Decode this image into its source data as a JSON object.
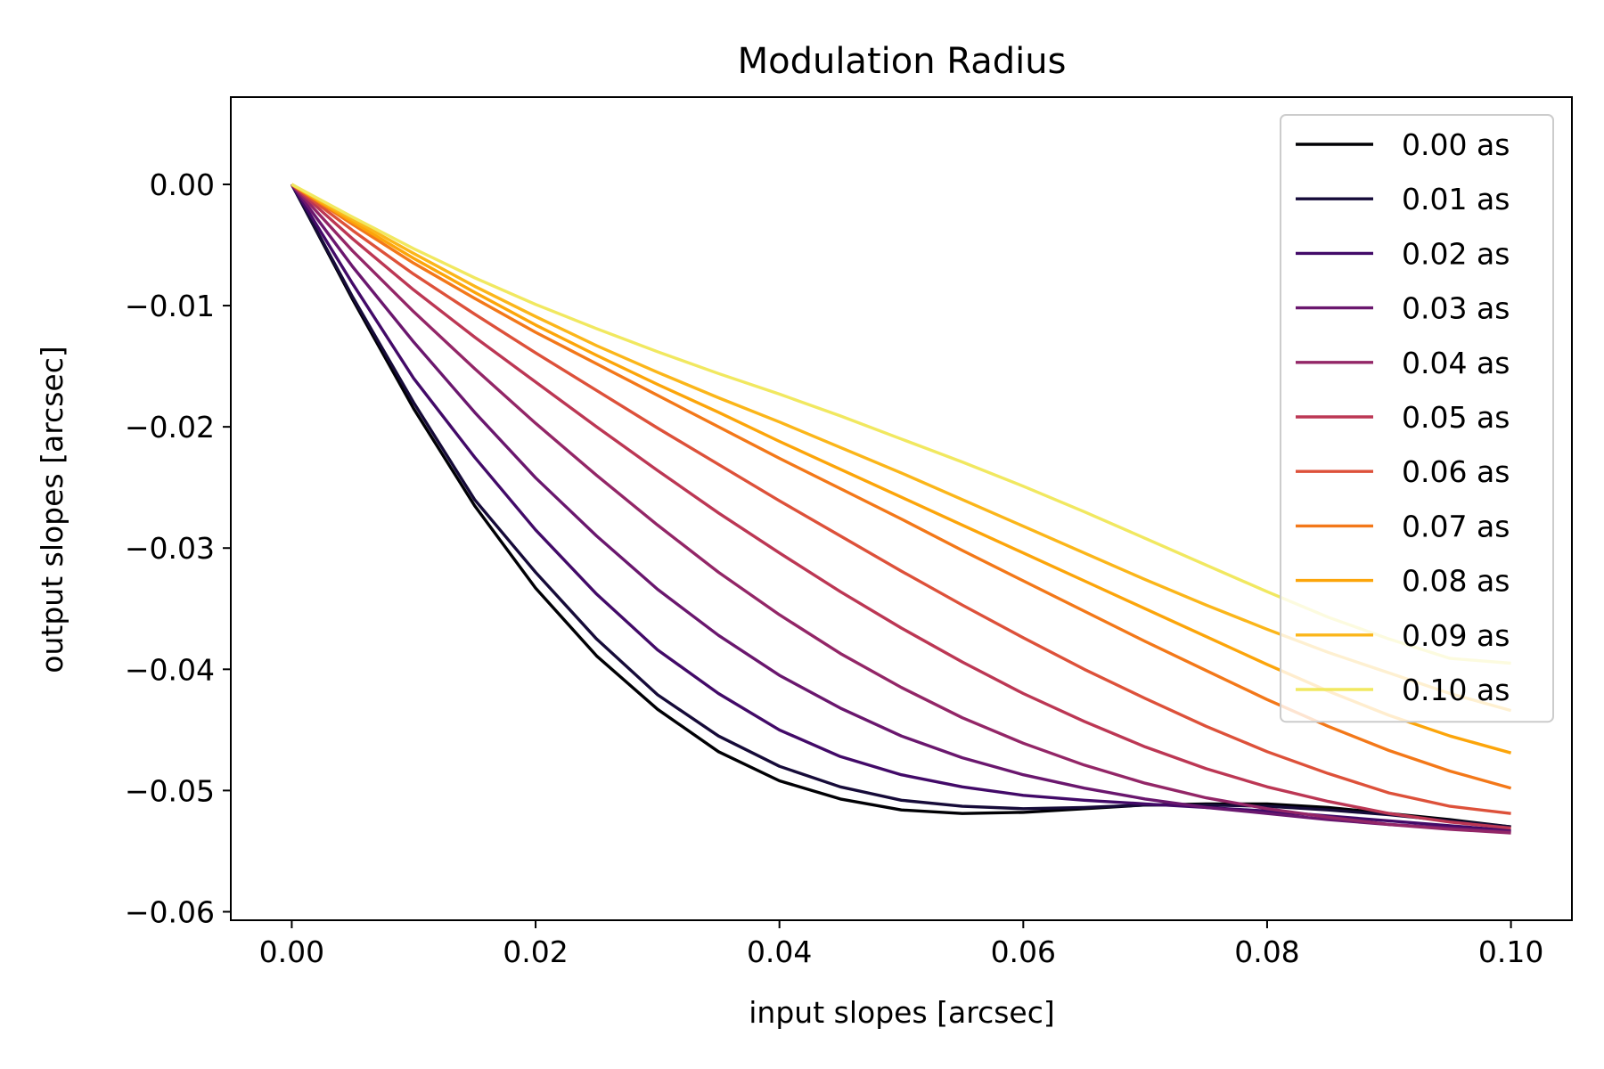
{
  "chart_data": {
    "type": "line",
    "title": "Modulation Radius",
    "xlabel": "input slopes [arcsec]",
    "ylabel": "output slopes [arcsec]",
    "xlim": [
      -0.005,
      0.105
    ],
    "ylim": [
      -0.0607,
      0.0072
    ],
    "xticks": [
      0.0,
      0.02,
      0.04,
      0.06,
      0.08,
      0.1
    ],
    "xtick_labels": [
      "0.00",
      "0.02",
      "0.04",
      "0.06",
      "0.08",
      "0.10"
    ],
    "yticks": [
      0.0,
      -0.01,
      -0.02,
      -0.03,
      -0.04,
      -0.05,
      -0.06
    ],
    "ytick_labels": [
      "0.00",
      "−0.01",
      "−0.02",
      "−0.03",
      "−0.04",
      "−0.05",
      "−0.06"
    ],
    "grid": false,
    "legend_position": "top-right",
    "x": [
      0.0,
      0.005,
      0.01,
      0.015,
      0.02,
      0.025,
      0.03,
      0.035,
      0.04,
      0.045,
      0.05,
      0.055,
      0.06,
      0.065,
      0.07,
      0.075,
      0.08,
      0.085,
      0.09,
      0.095,
      0.1
    ],
    "series": [
      {
        "name": "0.00 as",
        "color": "#000004",
        "values": [
          0.0,
          -0.0095,
          -0.0185,
          -0.0265,
          -0.0333,
          -0.0389,
          -0.0433,
          -0.0468,
          -0.0492,
          -0.0507,
          -0.0516,
          -0.0519,
          -0.0518,
          -0.0515,
          -0.0512,
          -0.0511,
          -0.0511,
          -0.0514,
          -0.0519,
          -0.0524,
          -0.053
        ]
      },
      {
        "name": "0.01 as",
        "color": "#160b39",
        "values": [
          0.0,
          -0.0093,
          -0.018,
          -0.026,
          -0.032,
          -0.0375,
          -0.0421,
          -0.0455,
          -0.048,
          -0.0497,
          -0.0508,
          -0.0513,
          -0.0515,
          -0.0514,
          -0.0512,
          -0.0512,
          -0.0513,
          -0.0516,
          -0.052,
          -0.0525,
          -0.053
        ]
      },
      {
        "name": "0.02 as",
        "color": "#420a68",
        "values": [
          0.0,
          -0.0082,
          -0.016,
          -0.0225,
          -0.0285,
          -0.0338,
          -0.0384,
          -0.042,
          -0.045,
          -0.0472,
          -0.0487,
          -0.0497,
          -0.0504,
          -0.0508,
          -0.0511,
          -0.0514,
          -0.0517,
          -0.0521,
          -0.0525,
          -0.0529,
          -0.0533
        ]
      },
      {
        "name": "0.03 as",
        "color": "#6a176e",
        "values": [
          0.0,
          -0.0068,
          -0.013,
          -0.0188,
          -0.0242,
          -0.029,
          -0.0334,
          -0.0372,
          -0.0405,
          -0.0432,
          -0.0455,
          -0.0473,
          -0.0487,
          -0.0498,
          -0.0507,
          -0.0514,
          -0.0519,
          -0.0524,
          -0.0528,
          -0.0531,
          -0.0534
        ]
      },
      {
        "name": "0.04 as",
        "color": "#932667",
        "values": [
          0.0,
          -0.0055,
          -0.0105,
          -0.0152,
          -0.0197,
          -0.024,
          -0.0281,
          -0.032,
          -0.0355,
          -0.0387,
          -0.0415,
          -0.044,
          -0.0461,
          -0.0479,
          -0.0494,
          -0.0506,
          -0.0515,
          -0.0522,
          -0.0528,
          -0.0532,
          -0.0535
        ]
      },
      {
        "name": "0.05 as",
        "color": "#bc3754",
        "values": [
          0.0,
          -0.0045,
          -0.0087,
          -0.0126,
          -0.0163,
          -0.02,
          -0.0236,
          -0.0271,
          -0.0304,
          -0.0336,
          -0.0366,
          -0.0394,
          -0.042,
          -0.0443,
          -0.0464,
          -0.0482,
          -0.0497,
          -0.0509,
          -0.0519,
          -0.0526,
          -0.0531
        ]
      },
      {
        "name": "0.06 as",
        "color": "#dd513a",
        "values": [
          0.0,
          -0.0038,
          -0.0074,
          -0.0107,
          -0.0139,
          -0.017,
          -0.0201,
          -0.0231,
          -0.0261,
          -0.029,
          -0.0319,
          -0.0347,
          -0.0374,
          -0.04,
          -0.0424,
          -0.0447,
          -0.0468,
          -0.0486,
          -0.0502,
          -0.0513,
          -0.0519
        ]
      },
      {
        "name": "0.07 as",
        "color": "#f37819",
        "values": [
          0.0,
          -0.0033,
          -0.0065,
          -0.0094,
          -0.0122,
          -0.0148,
          -0.0174,
          -0.02,
          -0.0226,
          -0.0251,
          -0.0276,
          -0.0302,
          -0.0327,
          -0.0352,
          -0.0377,
          -0.0401,
          -0.0425,
          -0.0447,
          -0.0467,
          -0.0484,
          -0.0498
        ]
      },
      {
        "name": "0.08 as",
        "color": "#fca50a",
        "values": [
          0.0,
          -0.0031,
          -0.0061,
          -0.0089,
          -0.0116,
          -0.0141,
          -0.0165,
          -0.0188,
          -0.0212,
          -0.0235,
          -0.0258,
          -0.0281,
          -0.0304,
          -0.0327,
          -0.035,
          -0.0373,
          -0.0396,
          -0.0418,
          -0.0438,
          -0.0455,
          -0.0469
        ]
      },
      {
        "name": "0.09 as",
        "color": "#fbb61a",
        "values": [
          0.0,
          -0.0029,
          -0.0057,
          -0.0084,
          -0.0109,
          -0.0133,
          -0.0155,
          -0.0176,
          -0.0196,
          -0.0217,
          -0.0238,
          -0.026,
          -0.0282,
          -0.0304,
          -0.0326,
          -0.0347,
          -0.0367,
          -0.0386,
          -0.0403,
          -0.042,
          -0.0434
        ]
      },
      {
        "name": "0.10 as",
        "color": "#f1e860",
        "values": [
          0.0,
          -0.0027,
          -0.0053,
          -0.0077,
          -0.0099,
          -0.0119,
          -0.0138,
          -0.0156,
          -0.0173,
          -0.0191,
          -0.021,
          -0.0229,
          -0.0249,
          -0.027,
          -0.0292,
          -0.0314,
          -0.0336,
          -0.0357,
          -0.0375,
          -0.0391,
          -0.0395
        ]
      }
    ]
  }
}
